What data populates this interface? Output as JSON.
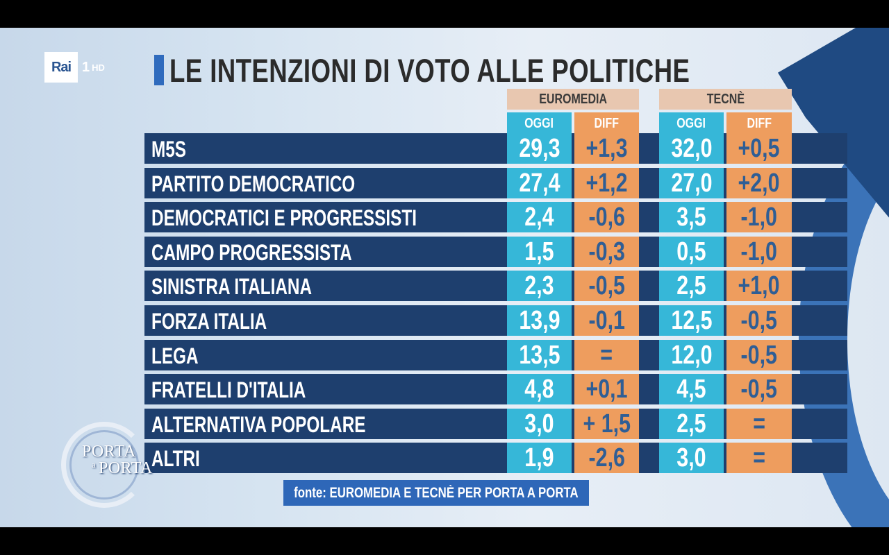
{
  "brand": {
    "box": "Rai",
    "channel": "1",
    "hd": "HD"
  },
  "title": "LE INTENZIONI DI VOTO ALLE POLITICHE",
  "show_logo": {
    "line1": "PORTA",
    "line2": "a",
    "line3": "PORTA"
  },
  "colors": {
    "row": "#1e3f6e",
    "oggi": "#36b7d8",
    "diff": "#ee9d5e",
    "source_header": "#e8c7b0",
    "accent": "#2f6bbd"
  },
  "footnote": "fonte: EUROMEDIA E TECNÈ PER PORTA A PORTA",
  "chart_data": {
    "type": "table",
    "title": "LE INTENZIONI DI VOTO ALLE POLITICHE",
    "sources": [
      "EUROMEDIA",
      "TECNÈ"
    ],
    "columns": [
      "OGGI",
      "DIFF"
    ],
    "rows": [
      {
        "party": "M5S",
        "euromedia": {
          "oggi": "29,3",
          "diff": "+1,3"
        },
        "tecne": {
          "oggi": "32,0",
          "diff": "+0,5"
        }
      },
      {
        "party": "PARTITO DEMOCRATICO",
        "euromedia": {
          "oggi": "27,4",
          "diff": "+1,2"
        },
        "tecne": {
          "oggi": "27,0",
          "diff": "+2,0"
        }
      },
      {
        "party": "DEMOCRATICI E PROGRESSISTI",
        "euromedia": {
          "oggi": "2,4",
          "diff": "-0,6"
        },
        "tecne": {
          "oggi": "3,5",
          "diff": "-1,0"
        }
      },
      {
        "party": "CAMPO PROGRESSISTA",
        "euromedia": {
          "oggi": "1,5",
          "diff": "-0,3"
        },
        "tecne": {
          "oggi": "0,5",
          "diff": "-1,0"
        }
      },
      {
        "party": "SINISTRA ITALIANA",
        "euromedia": {
          "oggi": "2,3",
          "diff": "-0,5"
        },
        "tecne": {
          "oggi": "2,5",
          "diff": "+1,0"
        }
      },
      {
        "party": "FORZA ITALIA",
        "euromedia": {
          "oggi": "13,9",
          "diff": "-0,1"
        },
        "tecne": {
          "oggi": "12,5",
          "diff": "-0,5"
        }
      },
      {
        "party": "LEGA",
        "euromedia": {
          "oggi": "13,5",
          "diff": "="
        },
        "tecne": {
          "oggi": "12,0",
          "diff": "-0,5"
        }
      },
      {
        "party": "FRATELLI D'ITALIA",
        "euromedia": {
          "oggi": "4,8",
          "diff": "+0,1"
        },
        "tecne": {
          "oggi": "4,5",
          "diff": "-0,5"
        }
      },
      {
        "party": "ALTERNATIVA POPOLARE",
        "euromedia": {
          "oggi": "3,0",
          "diff": "+ 1,5"
        },
        "tecne": {
          "oggi": "2,5",
          "diff": "="
        }
      },
      {
        "party": "ALTRI",
        "euromedia": {
          "oggi": "1,9",
          "diff": "-2,6"
        },
        "tecne": {
          "oggi": "3,0",
          "diff": "="
        }
      }
    ]
  }
}
